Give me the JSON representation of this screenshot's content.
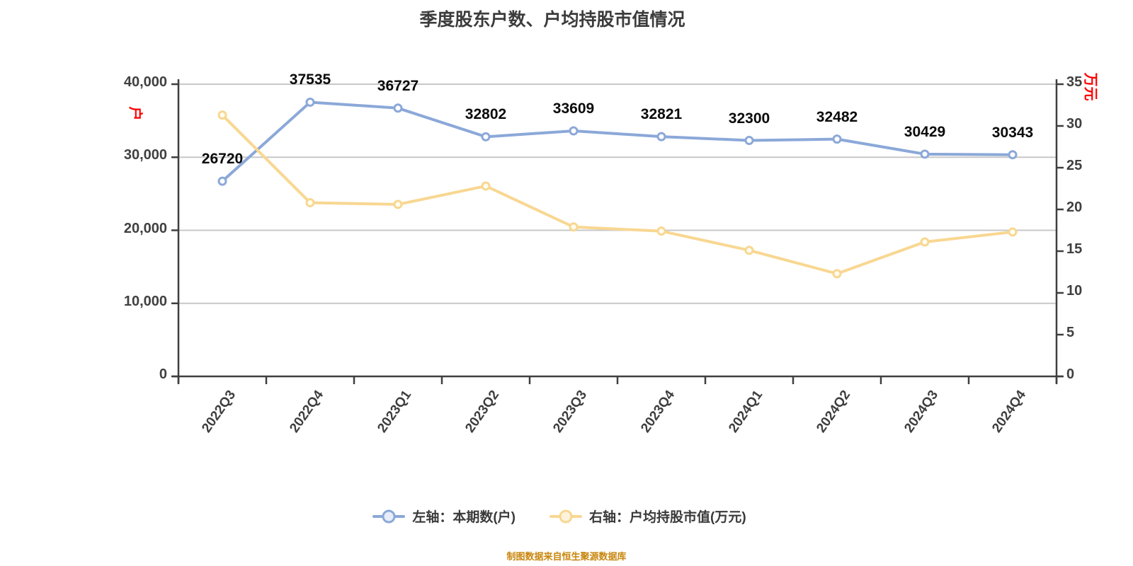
{
  "chart_data": {
    "type": "line",
    "title": "季度股东户数、户均持股市值情况",
    "title_color": "#3C3C3C",
    "categories": [
      "2022Q3",
      "2022Q4",
      "2023Q1",
      "2023Q2",
      "2023Q3",
      "2023Q4",
      "2024Q1",
      "2024Q2",
      "2024Q3",
      "2024Q4"
    ],
    "series": [
      {
        "name": "左轴：本期数(户)",
        "axis": "left",
        "color": "#8BA8D8",
        "marker_fill": "#FFFFFF",
        "show_labels": true,
        "values": [
          26720,
          37535,
          36727,
          32802,
          33609,
          32821,
          32300,
          32482,
          30429,
          30343
        ]
      },
      {
        "name": "右轴：户均持股市值(万元)",
        "axis": "right",
        "color": "#F8D791",
        "marker_fill": "#FFFDF2",
        "show_labels": false,
        "values": [
          31.3,
          20.8,
          20.6,
          22.8,
          17.9,
          17.4,
          15.1,
          12.3,
          16.1,
          17.3
        ]
      }
    ],
    "left_axis": {
      "name": "户",
      "name_color": "#FF0000",
      "min": 0,
      "max": 40000,
      "tick_step": 10000,
      "tick_labels": [
        "40,000",
        "30,000",
        "20,000",
        "10,000",
        "0"
      ]
    },
    "right_axis": {
      "name": "万元",
      "name_color": "#FF0000",
      "min": 0,
      "max": 35,
      "tick_step": 5,
      "tick_labels": [
        "35",
        "30",
        "25",
        "20",
        "15",
        "10",
        "5",
        "0"
      ]
    },
    "x_axis": {
      "label_rotation_deg": -55
    },
    "grid": true,
    "legend_position": "bottom",
    "footer": "制图数据来自恒生聚源数据库",
    "footer_color": "#C8860D"
  }
}
